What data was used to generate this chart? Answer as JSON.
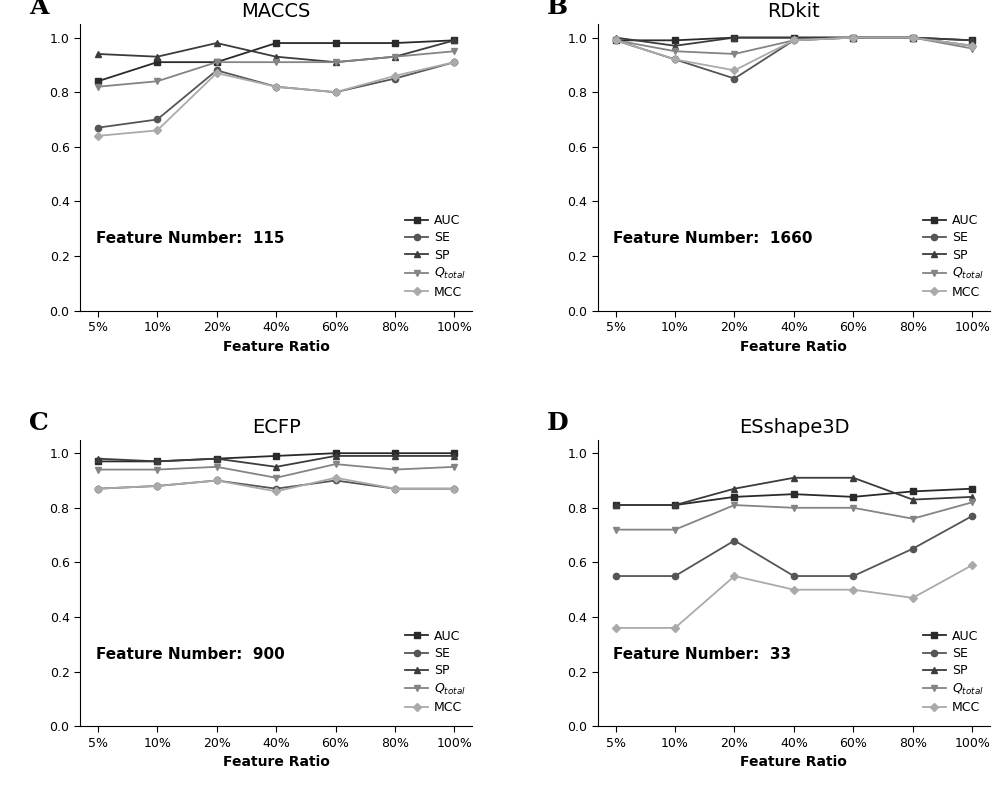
{
  "x_labels": [
    "5%",
    "10%",
    "20%",
    "40%",
    "60%",
    "80%",
    "100%"
  ],
  "x_values": [
    0,
    1,
    2,
    3,
    4,
    5,
    6
  ],
  "MACCS": {
    "title": "MACCS",
    "feature_number": "Feature Number:  115",
    "AUC": [
      0.84,
      0.91,
      0.91,
      0.98,
      0.98,
      0.98,
      0.99
    ],
    "SE": [
      0.67,
      0.7,
      0.88,
      0.82,
      0.8,
      0.85,
      0.91
    ],
    "SP": [
      0.94,
      0.93,
      0.98,
      0.93,
      0.91,
      0.93,
      0.99
    ],
    "Qtotal": [
      0.82,
      0.84,
      0.91,
      0.91,
      0.91,
      0.93,
      0.95
    ],
    "MCC": [
      0.64,
      0.66,
      0.87,
      0.82,
      0.8,
      0.86,
      0.91
    ]
  },
  "RDkit": {
    "title": "RDkit",
    "feature_number": "Feature Number:  1660",
    "AUC": [
      0.99,
      0.99,
      1.0,
      1.0,
      1.0,
      1.0,
      0.99
    ],
    "SE": [
      0.99,
      0.92,
      0.85,
      0.99,
      1.0,
      1.0,
      0.97
    ],
    "SP": [
      1.0,
      0.97,
      1.0,
      1.0,
      1.0,
      1.0,
      0.99
    ],
    "Qtotal": [
      0.99,
      0.95,
      0.94,
      0.99,
      1.0,
      1.0,
      0.96
    ],
    "MCC": [
      0.99,
      0.92,
      0.88,
      0.99,
      1.0,
      1.0,
      0.97
    ]
  },
  "ECFP": {
    "title": "ECFP",
    "feature_number": "Feature Number:  900",
    "AUC": [
      0.97,
      0.97,
      0.98,
      0.99,
      1.0,
      1.0,
      1.0
    ],
    "SE": [
      0.87,
      0.88,
      0.9,
      0.87,
      0.9,
      0.87,
      0.87
    ],
    "SP": [
      0.98,
      0.97,
      0.98,
      0.95,
      0.99,
      0.99,
      0.99
    ],
    "Qtotal": [
      0.94,
      0.94,
      0.95,
      0.91,
      0.96,
      0.94,
      0.95
    ],
    "MCC": [
      0.87,
      0.88,
      0.9,
      0.86,
      0.91,
      0.87,
      0.87
    ]
  },
  "ESshape3D": {
    "title": "ESshape3D",
    "feature_number": "Feature Number:  33",
    "AUC": [
      0.81,
      0.81,
      0.84,
      0.85,
      0.84,
      0.86,
      0.87
    ],
    "SE": [
      0.55,
      0.55,
      0.68,
      0.55,
      0.55,
      0.65,
      0.77
    ],
    "SP": [
      0.81,
      0.81,
      0.87,
      0.91,
      0.91,
      0.83,
      0.84
    ],
    "Qtotal": [
      0.72,
      0.72,
      0.81,
      0.8,
      0.8,
      0.76,
      0.82
    ],
    "MCC": [
      0.36,
      0.36,
      0.55,
      0.5,
      0.5,
      0.47,
      0.59
    ]
  },
  "line_colors": {
    "AUC": "#2a2a2a",
    "SE": "#555555",
    "SP": "#3c3c3c",
    "Qtotal": "#848484",
    "MCC": "#aaaaaa"
  },
  "markers": {
    "AUC": "s",
    "SE": "o",
    "SP": "^",
    "Qtotal": "v",
    "MCC": "D"
  },
  "panel_labels": [
    "A",
    "B",
    "C",
    "D"
  ],
  "xlabel": "Feature Ratio",
  "ylim": [
    0.0,
    1.05
  ],
  "yticks": [
    0.0,
    0.2,
    0.4,
    0.6,
    0.8,
    1.0
  ],
  "bg_color": "#ffffff",
  "line_width": 1.3,
  "marker_size": 4.5
}
